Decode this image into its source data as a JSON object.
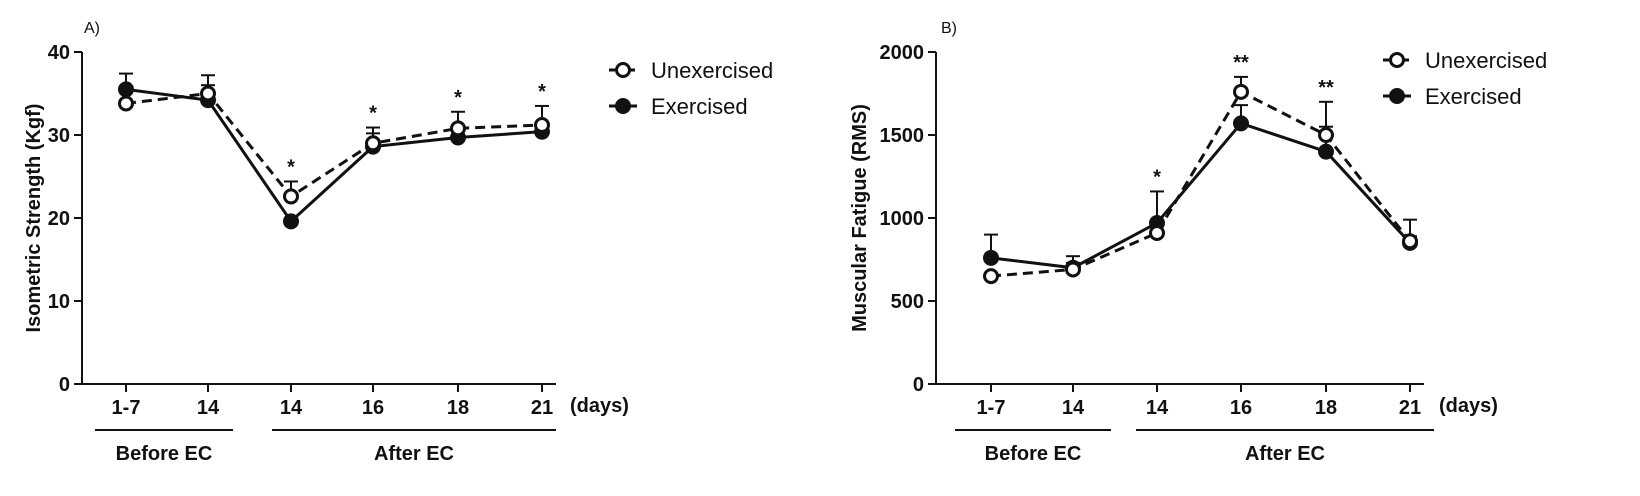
{
  "chart_data": [
    {
      "type": "line",
      "panel_label": "A)",
      "ylabel": "Isometric Strength (Kgf)",
      "ylim": [
        0,
        40
      ],
      "yticks": [
        0,
        10,
        20,
        30,
        40
      ],
      "categories": [
        "1-7",
        "14",
        "14",
        "16",
        "18",
        "21"
      ],
      "x_unit": "(days)",
      "groups": [
        {
          "label": "Before EC",
          "from": 0,
          "to": 1
        },
        {
          "label": "After EC",
          "from": 2,
          "to": 5
        }
      ],
      "series": [
        {
          "name": "Unexercised",
          "style": "dashed",
          "marker": "open-circle",
          "values": [
            33.8,
            35.0,
            22.6,
            29.0,
            30.8,
            31.2
          ],
          "errors": [
            1.5,
            2.2,
            1.8,
            1.9,
            2.0,
            2.3
          ]
        },
        {
          "name": "Exercised",
          "style": "solid",
          "marker": "filled-circle",
          "values": [
            35.5,
            34.2,
            19.6,
            28.6,
            29.7,
            30.4
          ],
          "errors": [
            1.9,
            1.8,
            0.0,
            1.6,
            1.2,
            1.0
          ]
        }
      ],
      "significance": [
        "",
        "",
        "*",
        "*",
        "*",
        "*"
      ],
      "legend_position": "top-right",
      "grid": false
    },
    {
      "type": "line",
      "panel_label": "B)",
      "ylabel": "Muscular Fatigue (RMS)",
      "ylim": [
        0,
        2000
      ],
      "yticks": [
        0,
        500,
        1000,
        1500,
        2000
      ],
      "categories": [
        "1-7",
        "14",
        "14",
        "16",
        "18",
        "21"
      ],
      "x_unit": "(days)",
      "groups": [
        {
          "label": "Before EC",
          "from": 0,
          "to": 1
        },
        {
          "label": "After EC",
          "from": 2,
          "to": 5
        }
      ],
      "series": [
        {
          "name": "Unexercised",
          "style": "dashed",
          "marker": "open-circle",
          "values": [
            650,
            690,
            910,
            1760,
            1500,
            860
          ],
          "errors": [
            0,
            40,
            60,
            90,
            200,
            130
          ]
        },
        {
          "name": "Exercised",
          "style": "solid",
          "marker": "filled-circle",
          "values": [
            760,
            700,
            970,
            1570,
            1400,
            850
          ],
          "errors": [
            140,
            70,
            190,
            110,
            150,
            40
          ]
        }
      ],
      "significance": [
        "",
        "",
        "*",
        "**",
        "**",
        ""
      ],
      "legend_position": "top-right",
      "grid": false
    }
  ]
}
